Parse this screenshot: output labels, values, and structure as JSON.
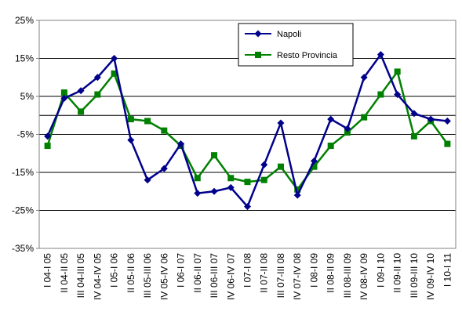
{
  "chart_data": {
    "type": "line",
    "categories": [
      "I 04-I 05",
      "II 04-II 05",
      "III 04-III 05",
      "IV 04-IV 05",
      "I 05-I 06",
      "II 05-II 06",
      "III 05-III 06",
      "IV 05-IV 06",
      "I 06-I 07",
      "II 06-II 07",
      "III 06-III 07",
      "IV 06-IV 07",
      "I 07-I 08",
      "II 07-II 08",
      "III 07-III 08",
      "IV 07-IV 08",
      "I 08-I 09",
      "II 08-II 09",
      "III 08-III 09",
      "IV 08-IV 09",
      "I 09-I 10",
      "II 09-II 10",
      "III 09-III 10",
      "IV 09-IV 10",
      "I 10-I 11"
    ],
    "series": [
      {
        "name": "Napoli",
        "color": "#00008B",
        "marker": "diamond",
        "values": [
          -5.5,
          4.5,
          6.5,
          10,
          15,
          -6.5,
          -17,
          -14,
          -7.5,
          -20.5,
          -20,
          -19,
          -24,
          -13,
          -2,
          -21,
          -12,
          -1,
          -3.5,
          10,
          16,
          5.5,
          0.5,
          -1,
          -1.5
        ]
      },
      {
        "name": "Resto Provincia",
        "color": "#008000",
        "marker": "square",
        "values": [
          -8,
          6,
          1,
          5.5,
          11,
          -1,
          -1.5,
          -4,
          -8,
          -16.5,
          -10.5,
          -16.5,
          -17.5,
          -17,
          -13.5,
          -19.5,
          -13.5,
          -8,
          -4.5,
          -0.5,
          5.5,
          11.5,
          -5.5,
          -1.5,
          -7.5
        ]
      }
    ],
    "y_ticks": [
      "25%",
      "15%",
      "5%",
      "-5%",
      "-15%",
      "-25%",
      "-35%"
    ],
    "ylim": [
      -35,
      25
    ],
    "grid": true,
    "legend": "top-right"
  }
}
